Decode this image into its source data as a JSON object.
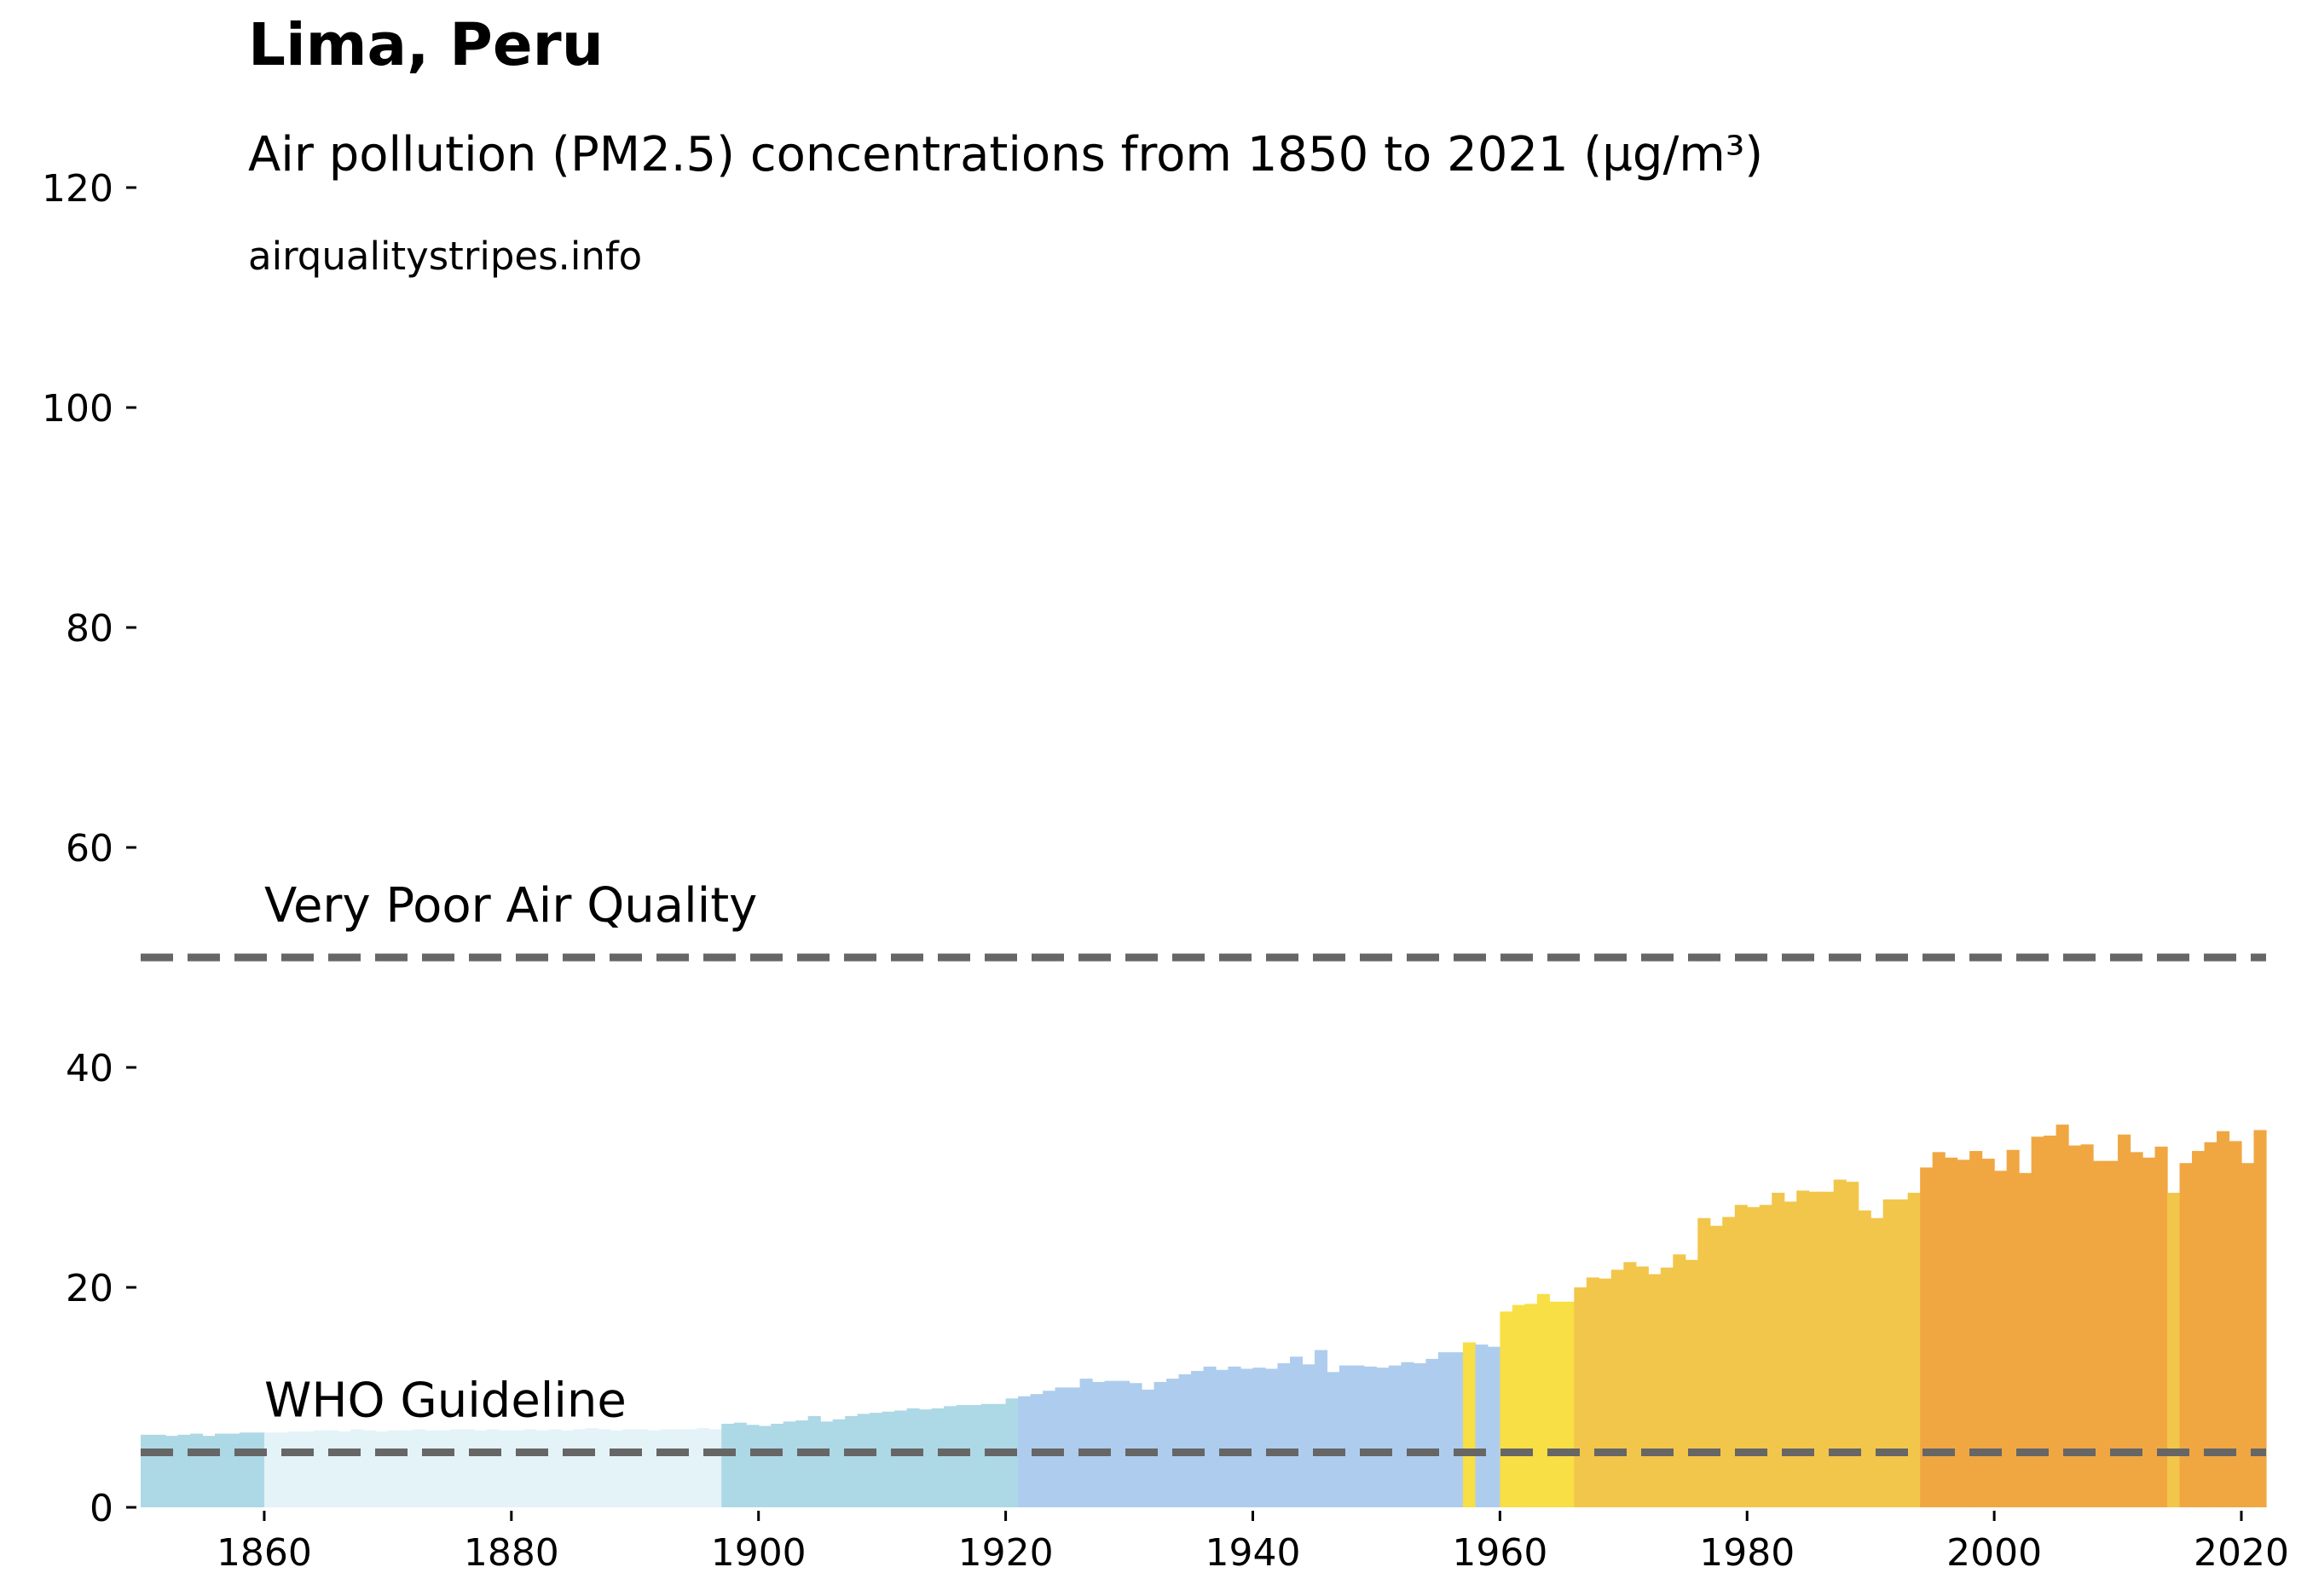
{
  "chart_data": {
    "type": "bar",
    "title": "Lima, Peru",
    "subtitle": "Air pollution (PM2.5) concentrations from 1850 to 2021 (µg/m³)",
    "source": "airqualitystripes.info",
    "x": [
      1850,
      1851,
      1852,
      1853,
      1854,
      1855,
      1856,
      1857,
      1858,
      1859,
      1860,
      1861,
      1862,
      1863,
      1864,
      1865,
      1866,
      1867,
      1868,
      1869,
      1870,
      1871,
      1872,
      1873,
      1874,
      1875,
      1876,
      1877,
      1878,
      1879,
      1880,
      1881,
      1882,
      1883,
      1884,
      1885,
      1886,
      1887,
      1888,
      1889,
      1890,
      1891,
      1892,
      1893,
      1894,
      1895,
      1896,
      1897,
      1898,
      1899,
      1900,
      1901,
      1902,
      1903,
      1904,
      1905,
      1906,
      1907,
      1908,
      1909,
      1910,
      1911,
      1912,
      1913,
      1914,
      1915,
      1916,
      1917,
      1918,
      1919,
      1920,
      1921,
      1922,
      1923,
      1924,
      1925,
      1926,
      1927,
      1928,
      1929,
      1930,
      1931,
      1932,
      1933,
      1934,
      1935,
      1936,
      1937,
      1938,
      1939,
      1940,
      1941,
      1942,
      1943,
      1944,
      1945,
      1946,
      1947,
      1948,
      1949,
      1950,
      1951,
      1952,
      1953,
      1954,
      1955,
      1956,
      1957,
      1958,
      1959,
      1960,
      1961,
      1962,
      1963,
      1964,
      1965,
      1966,
      1967,
      1968,
      1969,
      1970,
      1971,
      1972,
      1973,
      1974,
      1975,
      1976,
      1977,
      1978,
      1979,
      1980,
      1981,
      1982,
      1983,
      1984,
      1985,
      1986,
      1987,
      1988,
      1989,
      1990,
      1991,
      1992,
      1993,
      1994,
      1995,
      1996,
      1997,
      1998,
      1999,
      2000,
      2001,
      2002,
      2003,
      2004,
      2005,
      2006,
      2007,
      2008,
      2009,
      2010,
      2011,
      2012,
      2013,
      2014,
      2015,
      2016,
      2017,
      2018,
      2019,
      2020,
      2021
    ],
    "values": [
      6.6,
      6.6,
      6.5,
      6.6,
      6.7,
      6.5,
      6.7,
      6.7,
      6.8,
      6.8,
      6.8,
      6.8,
      6.9,
      6.9,
      7.0,
      7.0,
      6.9,
      7.1,
      7.0,
      6.9,
      7.0,
      7.0,
      7.1,
      7.0,
      7.0,
      7.1,
      7.1,
      7.0,
      7.1,
      7.0,
      7.0,
      7.1,
      7.0,
      7.1,
      7.0,
      7.1,
      7.2,
      7.1,
      7.0,
      7.1,
      7.1,
      7.0,
      7.1,
      7.1,
      7.1,
      7.2,
      7.1,
      7.6,
      7.7,
      7.5,
      7.4,
      7.6,
      7.8,
      7.9,
      8.3,
      7.8,
      8.0,
      8.3,
      8.5,
      8.6,
      8.7,
      8.8,
      9.0,
      8.9,
      9.0,
      9.2,
      9.3,
      9.3,
      9.4,
      9.4,
      9.9,
      10.1,
      10.3,
      10.6,
      10.9,
      10.9,
      11.7,
      11.4,
      11.5,
      11.5,
      11.3,
      10.7,
      11.4,
      11.7,
      12.1,
      12.4,
      12.8,
      12.5,
      12.8,
      12.6,
      12.7,
      12.6,
      13.1,
      13.7,
      13.0,
      14.3,
      12.3,
      12.9,
      12.9,
      12.8,
      12.7,
      12.9,
      13.2,
      13.1,
      13.5,
      14.1,
      14.1,
      15.0,
      14.8,
      14.6,
      17.8,
      18.4,
      18.5,
      19.4,
      18.7,
      18.7,
      20.0,
      20.9,
      20.8,
      21.6,
      22.3,
      21.9,
      21.2,
      21.8,
      23.0,
      22.5,
      26.3,
      25.6,
      26.4,
      27.5,
      27.3,
      27.5,
      28.6,
      27.8,
      28.8,
      28.7,
      28.7,
      29.8,
      29.6,
      27.0,
      26.3,
      28.0,
      28.0,
      28.6,
      30.9,
      32.3,
      31.8,
      31.6,
      32.4,
      31.7,
      30.6,
      32.5,
      30.4,
      33.7,
      33.8,
      34.8,
      32.9,
      33.0,
      31.5,
      31.5,
      33.9,
      32.3,
      31.8,
      32.8,
      28.6,
      31.3,
      32.4,
      33.2,
      34.2,
      33.3,
      31.3,
      34.3
    ],
    "colors": [
      "#add8e6",
      "#add8e6",
      "#add8e6",
      "#add8e6",
      "#add8e6",
      "#add8e6",
      "#add8e6",
      "#add8e6",
      "#add8e6",
      "#add8e6",
      "#e4f3f7",
      "#e4f3f7",
      "#e4f3f7",
      "#e4f3f7",
      "#e4f3f7",
      "#e4f3f7",
      "#e4f3f7",
      "#e4f3f7",
      "#e4f3f7",
      "#e4f3f7",
      "#e4f3f7",
      "#e4f3f7",
      "#e4f3f7",
      "#e4f3f7",
      "#e4f3f7",
      "#e4f3f7",
      "#e4f3f7",
      "#e4f3f7",
      "#e4f3f7",
      "#e4f3f7",
      "#e4f3f7",
      "#e4f3f7",
      "#e4f3f7",
      "#e4f3f7",
      "#e4f3f7",
      "#e4f3f7",
      "#e4f3f7",
      "#e4f3f7",
      "#e4f3f7",
      "#e4f3f7",
      "#e4f3f7",
      "#e4f3f7",
      "#e4f3f7",
      "#e4f3f7",
      "#e4f3f7",
      "#e4f3f7",
      "#e4f3f7",
      "#add8e6",
      "#add8e6",
      "#add8e6",
      "#add8e6",
      "#add8e6",
      "#add8e6",
      "#add8e6",
      "#add8e6",
      "#add8e6",
      "#add8e6",
      "#add8e6",
      "#add8e6",
      "#add8e6",
      "#add8e6",
      "#add8e6",
      "#add8e6",
      "#add8e6",
      "#add8e6",
      "#add8e6",
      "#add8e6",
      "#add8e6",
      "#add8e6",
      "#add8e6",
      "#add8e6",
      "#aecdee",
      "#aecdee",
      "#aecdee",
      "#aecdee",
      "#aecdee",
      "#aecdee",
      "#aecdee",
      "#aecdee",
      "#aecdee",
      "#aecdee",
      "#aecdee",
      "#aecdee",
      "#aecdee",
      "#aecdee",
      "#aecdee",
      "#aecdee",
      "#aecdee",
      "#aecdee",
      "#aecdee",
      "#aecdee",
      "#aecdee",
      "#aecdee",
      "#aecdee",
      "#aecdee",
      "#aecdee",
      "#aecdee",
      "#aecdee",
      "#aecdee",
      "#aecdee",
      "#aecdee",
      "#aecdee",
      "#aecdee",
      "#aecdee",
      "#aecdee",
      "#aecdee",
      "#aecdee",
      "#f7df45",
      "#aecdee",
      "#aecdee",
      "#f7df45",
      "#f7df45",
      "#f7df45",
      "#f7df45",
      "#f7df45",
      "#f7df45",
      "#f2c64a",
      "#f2c64a",
      "#f2c64a",
      "#f2c64a",
      "#f2c64a",
      "#f2c64a",
      "#f2c64a",
      "#f2c64a",
      "#f2c64a",
      "#f2c64a",
      "#f2c64a",
      "#f2c64a",
      "#f2c64a",
      "#f2c64a",
      "#f2c64a",
      "#f2c64a",
      "#f2c64a",
      "#f2c64a",
      "#f2c64a",
      "#f2c64a",
      "#f2c64a",
      "#f2c64a",
      "#f2c64a",
      "#f2c64a",
      "#f2c64a",
      "#f2c64a",
      "#f2c64a",
      "#f2c64a",
      "#f0a742",
      "#f0a742",
      "#f0a742",
      "#f0a742",
      "#f0a742",
      "#f0a742",
      "#f0a742",
      "#f0a742",
      "#f0a742",
      "#f0a742",
      "#f0a742",
      "#f0a742",
      "#f0a742",
      "#f0a742",
      "#f0a742",
      "#f0a742",
      "#f0a742",
      "#f0a742",
      "#f0a742",
      "#f0a742",
      "#f2c64a",
      "#f0a742",
      "#f0a742",
      "#f0a742",
      "#f0a742",
      "#f0a742",
      "#f0a742",
      "#f0a742"
    ],
    "xlim": [
      1850,
      2022
    ],
    "xticks": [
      1860,
      1880,
      1900,
      1920,
      1940,
      1960,
      1980,
      2000,
      2020
    ],
    "ylim": [
      0,
      120
    ],
    "yticks": [
      0,
      20,
      40,
      60,
      80,
      100,
      120
    ],
    "reference_lines": [
      {
        "value": 5,
        "label": "WHO Guideline"
      },
      {
        "value": 50,
        "label": "Very Poor Air Quality"
      }
    ],
    "reference_color": "#666666"
  }
}
